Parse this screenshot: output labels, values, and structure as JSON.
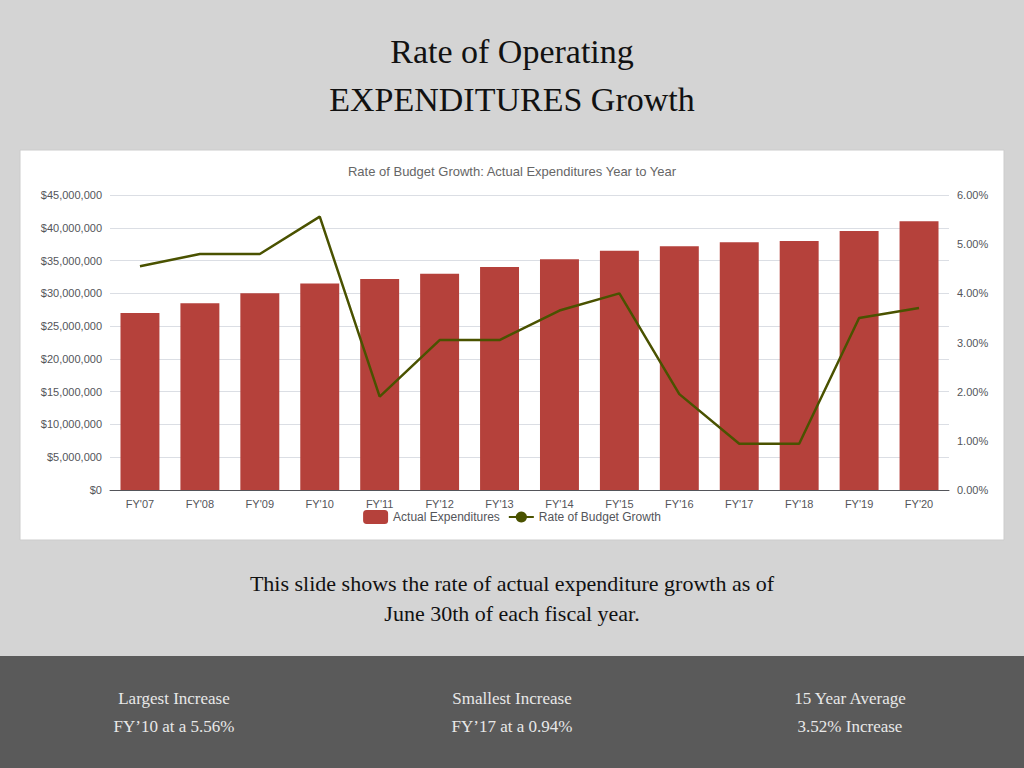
{
  "chart_data": {
    "type": "bar",
    "title": "Rate of Operating\nEXPENDITURES Growth",
    "subtitle": "Rate of Budget Growth: Actual Expenditures Year to Year",
    "annotations": [
      "This slide shows the rate of actual expenditure growth as of\nJune 30th of each fiscal year.",
      "Largest Increase\nFY’10 at a 5.56%",
      "Smallest Increase\nFY’17 at a 0.94%",
      "15 Year Average\n3.52% Increase"
    ],
    "categories": [
      "FY'07",
      "FY'08",
      "FY'09",
      "FY'10",
      "FY'11",
      "FY'12",
      "FY'13",
      "FY'14",
      "FY'15",
      "FY'16",
      "FY'17",
      "FY'18",
      "FY'19",
      "FY'20"
    ],
    "series": [
      {
        "name": "Actual Expenditures",
        "type": "bar",
        "color": "#b5413b",
        "values": [
          27000000,
          28500000,
          30000000,
          31500000,
          32200000,
          33000000,
          34000000,
          35200000,
          36500000,
          37200000,
          37800000,
          38000000,
          39500000,
          41000000
        ]
      },
      {
        "name": "Rate of Budget Growth",
        "type": "line",
        "axis": "y2",
        "color": "#4a5200",
        "values": [
          0.0455,
          0.048,
          0.048,
          0.0556,
          0.019,
          0.0305,
          0.0305,
          0.0365,
          0.04,
          0.0195,
          0.0094,
          0.0094,
          0.035,
          0.037
        ]
      }
    ],
    "ylim": [
      0,
      45000000
    ],
    "yticks": [
      {
        "value": 0,
        "label": "$0"
      },
      {
        "value": 5000000,
        "label": "$5,000,000"
      },
      {
        "value": 10000000,
        "label": "$10,000,000"
      },
      {
        "value": 15000000,
        "label": "$15,000,000"
      },
      {
        "value": 20000000,
        "label": "$20,000,000"
      },
      {
        "value": 25000000,
        "label": "$25,000,000"
      },
      {
        "value": 30000000,
        "label": "$30,000,000"
      },
      {
        "value": 35000000,
        "label": "$35,000,000"
      },
      {
        "value": 40000000,
        "label": "$40,000,000"
      },
      {
        "value": 45000000,
        "label": "$45,000,000"
      }
    ],
    "y2lim": [
      0,
      0.06
    ],
    "y2ticks": [
      {
        "value": 0.0,
        "label": "0.00%"
      },
      {
        "value": 0.01,
        "label": "1.00%"
      },
      {
        "value": 0.02,
        "label": "2.00%"
      },
      {
        "value": 0.03,
        "label": "3.00%"
      },
      {
        "value": 0.04,
        "label": "4.00%"
      },
      {
        "value": 0.05,
        "label": "5.00%"
      },
      {
        "value": 0.06,
        "label": "6.00%"
      }
    ],
    "grid": true,
    "legend": "bottom"
  }
}
